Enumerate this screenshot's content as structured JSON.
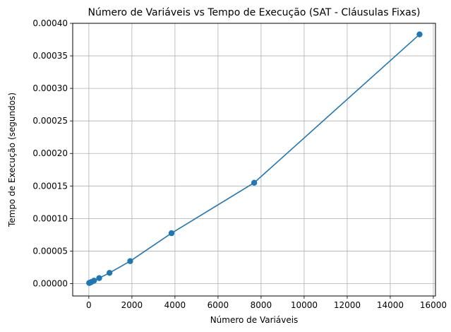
{
  "chart_data": {
    "type": "line",
    "title": "Número de Variáveis vs Tempo de Execução (SAT - Cláusulas Fixas)",
    "xlabel": "Número de Variáveis",
    "ylabel": "Tempo de Execução (segundos)",
    "xlim": [
      -750,
      16100
    ],
    "ylim": [
      -1.9e-05,
      0.0004
    ],
    "xticks": [
      0,
      2000,
      4000,
      6000,
      8000,
      10000,
      12000,
      14000,
      16000
    ],
    "xtick_labels": [
      "0",
      "2000",
      "4000",
      "6000",
      "8000",
      "10000",
      "12000",
      "14000",
      "16000"
    ],
    "yticks": [
      0,
      5e-05,
      0.0001,
      0.00015,
      0.0002,
      0.00025,
      0.0003,
      0.00035,
      0.0004
    ],
    "ytick_labels": [
      "0.00000",
      "0.00005",
      "0.00010",
      "0.00015",
      "0.00020",
      "0.00025",
      "0.00030",
      "0.00035",
      "0.00040"
    ],
    "grid": true,
    "series": [
      {
        "color": "#1f77b4",
        "marker": "circle",
        "x": [
          15,
          30,
          60,
          120,
          240,
          480,
          960,
          1920,
          3840,
          7680,
          15360
        ],
        "y": [
          1e-06,
          1.2e-06,
          1.5e-06,
          2.5e-06,
          4.5e-06,
          8.5e-06,
          1.65e-05,
          3.45e-05,
          7.75e-05,
          0.000155,
          0.000383
        ]
      }
    ]
  }
}
